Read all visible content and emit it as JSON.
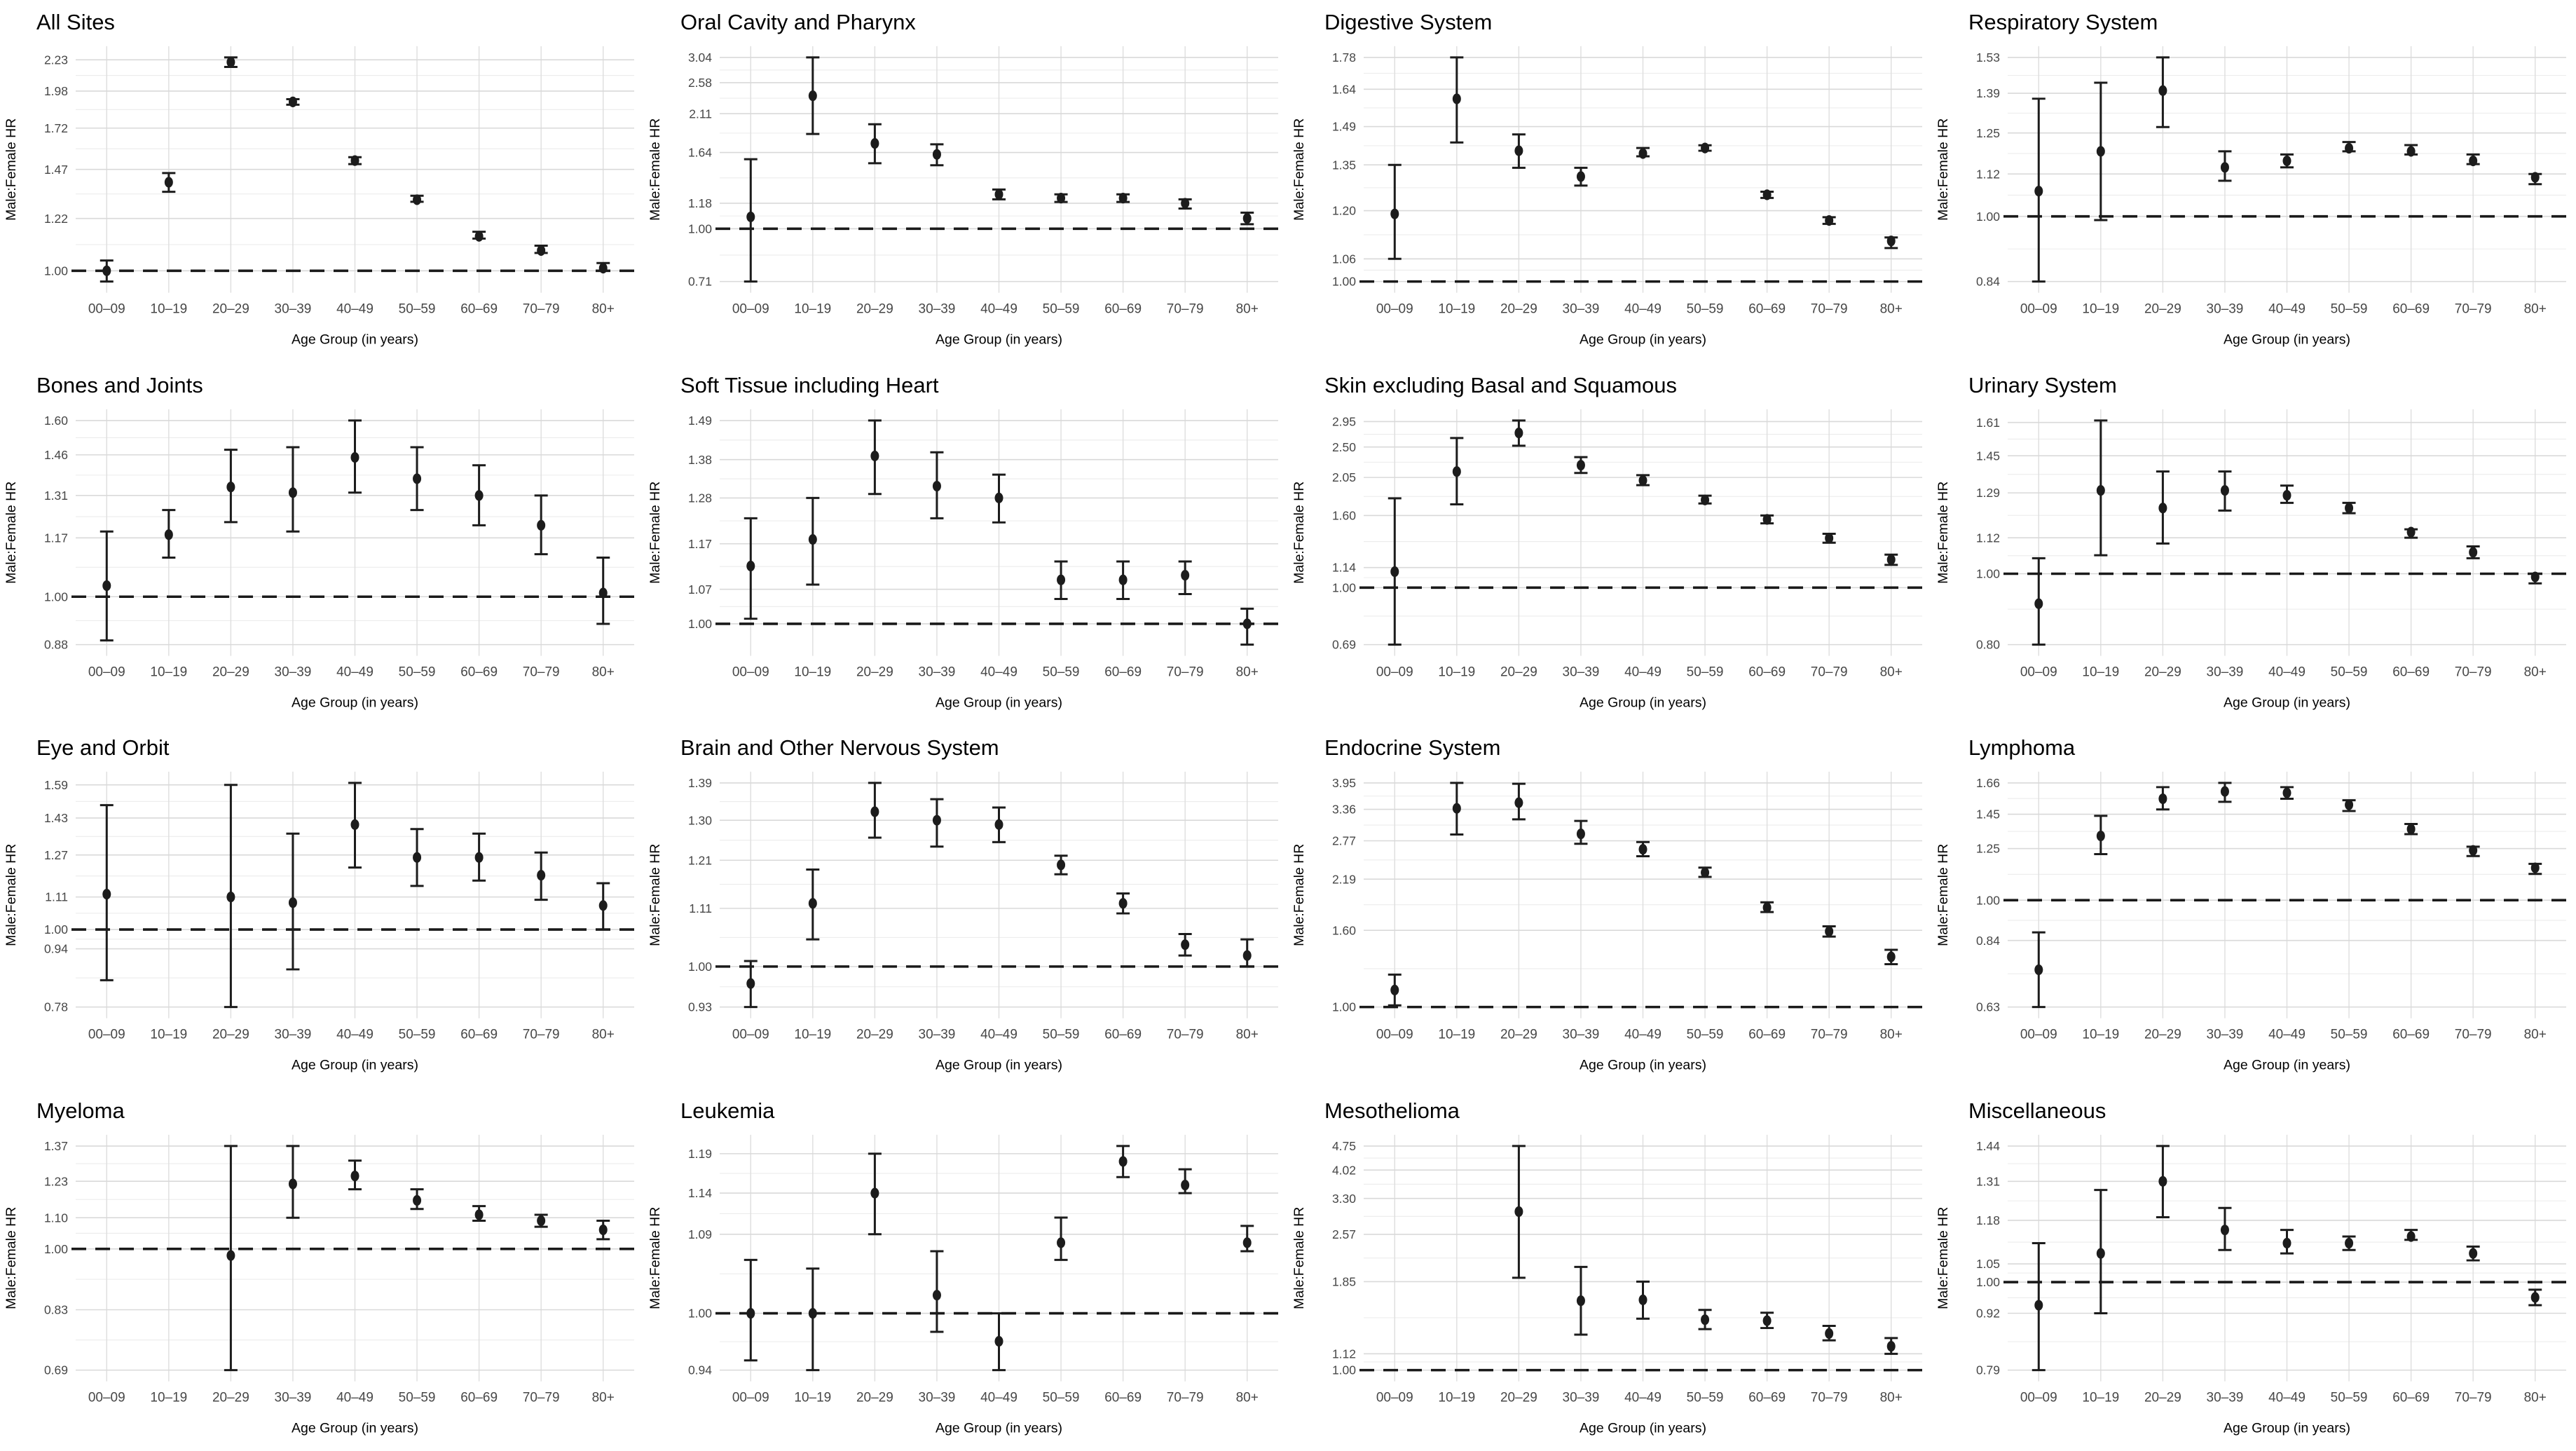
{
  "chart_data": {
    "type": "scatter",
    "subtype": "point-estimates-with-95ci-error-bars",
    "grid": {
      "rows": 4,
      "cols": 4
    },
    "scale": "log",
    "grid_on": true,
    "x_categories": [
      "00–09",
      "10–19",
      "20–29",
      "30–39",
      "40–49",
      "50–59",
      "60–69",
      "70–79",
      "80+"
    ],
    "xlabel": "Age Group (in years)",
    "ylabel": "Male:Female HR",
    "reference_line": 1.0,
    "colors": {
      "point": "#1c1c1c",
      "error_bar": "#1c1c1c",
      "reference_line": "#1a1a1a",
      "grid_major": "#d9d9d9",
      "grid_minor": "#ececec",
      "grid_vertical": "#dedede",
      "tick_text": "#474747",
      "title_text": "#000000",
      "background": "#ffffff"
    },
    "panels": [
      {
        "title": "All Sites",
        "y_ticks": [
          1.0,
          1.22,
          1.47,
          1.72,
          1.98,
          2.23
        ],
        "values": [
          {
            "hr": 1.0,
            "lo": 0.96,
            "hi": 1.04
          },
          {
            "hr": 1.4,
            "lo": 1.35,
            "hi": 1.45
          },
          {
            "hr": 2.21,
            "lo": 2.17,
            "hi": 2.25
          },
          {
            "hr": 1.9,
            "lo": 1.88,
            "hi": 1.92
          },
          {
            "hr": 1.52,
            "lo": 1.5,
            "hi": 1.54
          },
          {
            "hr": 1.31,
            "lo": 1.3,
            "hi": 1.33
          },
          {
            "hr": 1.14,
            "lo": 1.13,
            "hi": 1.16
          },
          {
            "hr": 1.08,
            "lo": 1.07,
            "hi": 1.1
          },
          {
            "hr": 1.01,
            "lo": 1.0,
            "hi": 1.03
          }
        ]
      },
      {
        "title": "Oral Cavity and Pharynx",
        "y_ticks": [
          0.71,
          1.0,
          1.18,
          1.64,
          2.11,
          2.58,
          3.04
        ],
        "values": [
          {
            "hr": 1.08,
            "lo": 0.71,
            "hi": 1.57
          },
          {
            "hr": 2.37,
            "lo": 1.85,
            "hi": 3.04
          },
          {
            "hr": 1.74,
            "lo": 1.53,
            "hi": 1.97
          },
          {
            "hr": 1.62,
            "lo": 1.51,
            "hi": 1.73
          },
          {
            "hr": 1.25,
            "lo": 1.21,
            "hi": 1.29
          },
          {
            "hr": 1.22,
            "lo": 1.19,
            "hi": 1.25
          },
          {
            "hr": 1.22,
            "lo": 1.19,
            "hi": 1.25
          },
          {
            "hr": 1.18,
            "lo": 1.14,
            "hi": 1.21
          },
          {
            "hr": 1.07,
            "lo": 1.03,
            "hi": 1.11
          }
        ]
      },
      {
        "title": "Digestive System",
        "y_ticks": [
          1.0,
          1.06,
          1.2,
          1.35,
          1.49,
          1.64,
          1.78
        ],
        "values": [
          {
            "hr": 1.19,
            "lo": 1.06,
            "hi": 1.35
          },
          {
            "hr": 1.6,
            "lo": 1.43,
            "hi": 1.78
          },
          {
            "hr": 1.4,
            "lo": 1.34,
            "hi": 1.46
          },
          {
            "hr": 1.31,
            "lo": 1.28,
            "hi": 1.34
          },
          {
            "hr": 1.39,
            "lo": 1.38,
            "hi": 1.41
          },
          {
            "hr": 1.41,
            "lo": 1.4,
            "hi": 1.42
          },
          {
            "hr": 1.25,
            "lo": 1.24,
            "hi": 1.26
          },
          {
            "hr": 1.17,
            "lo": 1.16,
            "hi": 1.18
          },
          {
            "hr": 1.11,
            "lo": 1.09,
            "hi": 1.12
          }
        ]
      },
      {
        "title": "Respiratory System",
        "y_ticks": [
          0.84,
          1.0,
          1.12,
          1.25,
          1.39,
          1.53
        ],
        "values": [
          {
            "hr": 1.07,
            "lo": 0.84,
            "hi": 1.37
          },
          {
            "hr": 1.19,
            "lo": 0.99,
            "hi": 1.43
          },
          {
            "hr": 1.4,
            "lo": 1.27,
            "hi": 1.53
          },
          {
            "hr": 1.14,
            "lo": 1.1,
            "hi": 1.19
          },
          {
            "hr": 1.16,
            "lo": 1.14,
            "hi": 1.18
          },
          {
            "hr": 1.2,
            "lo": 1.19,
            "hi": 1.22
          },
          {
            "hr": 1.19,
            "lo": 1.18,
            "hi": 1.21
          },
          {
            "hr": 1.16,
            "lo": 1.15,
            "hi": 1.18
          },
          {
            "hr": 1.11,
            "lo": 1.09,
            "hi": 1.12
          }
        ]
      },
      {
        "title": "Bones and Joints",
        "y_ticks": [
          0.88,
          1.0,
          1.17,
          1.31,
          1.46,
          1.6
        ],
        "values": [
          {
            "hr": 1.03,
            "lo": 0.89,
            "hi": 1.19
          },
          {
            "hr": 1.18,
            "lo": 1.11,
            "hi": 1.26
          },
          {
            "hr": 1.34,
            "lo": 1.22,
            "hi": 1.48
          },
          {
            "hr": 1.32,
            "lo": 1.19,
            "hi": 1.49
          },
          {
            "hr": 1.45,
            "lo": 1.32,
            "hi": 1.6
          },
          {
            "hr": 1.37,
            "lo": 1.26,
            "hi": 1.49
          },
          {
            "hr": 1.31,
            "lo": 1.21,
            "hi": 1.42
          },
          {
            "hr": 1.21,
            "lo": 1.12,
            "hi": 1.31
          },
          {
            "hr": 1.01,
            "lo": 0.93,
            "hi": 1.11
          }
        ]
      },
      {
        "title": "Soft Tissue including Heart",
        "y_ticks": [
          1.0,
          1.07,
          1.17,
          1.28,
          1.38,
          1.49
        ],
        "values": [
          {
            "hr": 1.12,
            "lo": 1.01,
            "hi": 1.23
          },
          {
            "hr": 1.18,
            "lo": 1.08,
            "hi": 1.28
          },
          {
            "hr": 1.39,
            "lo": 1.29,
            "hi": 1.49
          },
          {
            "hr": 1.31,
            "lo": 1.23,
            "hi": 1.4
          },
          {
            "hr": 1.28,
            "lo": 1.22,
            "hi": 1.34
          },
          {
            "hr": 1.09,
            "lo": 1.05,
            "hi": 1.13
          },
          {
            "hr": 1.09,
            "lo": 1.05,
            "hi": 1.13
          },
          {
            "hr": 1.1,
            "lo": 1.06,
            "hi": 1.13
          },
          {
            "hr": 1.0,
            "lo": 0.96,
            "hi": 1.03
          }
        ]
      },
      {
        "title": "Skin excluding Basal and Squamous",
        "y_ticks": [
          0.69,
          1.0,
          1.14,
          1.6,
          2.05,
          2.5,
          2.95
        ],
        "values": [
          {
            "hr": 1.11,
            "lo": 0.69,
            "hi": 1.79
          },
          {
            "hr": 2.13,
            "lo": 1.72,
            "hi": 2.65
          },
          {
            "hr": 2.74,
            "lo": 2.52,
            "hi": 2.97
          },
          {
            "hr": 2.22,
            "lo": 2.11,
            "hi": 2.34
          },
          {
            "hr": 2.01,
            "lo": 1.95,
            "hi": 2.08
          },
          {
            "hr": 1.77,
            "lo": 1.73,
            "hi": 1.82
          },
          {
            "hr": 1.56,
            "lo": 1.52,
            "hi": 1.6
          },
          {
            "hr": 1.38,
            "lo": 1.34,
            "hi": 1.42
          },
          {
            "hr": 1.2,
            "lo": 1.16,
            "hi": 1.24
          }
        ]
      },
      {
        "title": "Urinary System",
        "y_ticks": [
          0.8,
          1.0,
          1.12,
          1.29,
          1.45,
          1.61
        ],
        "values": [
          {
            "hr": 0.91,
            "lo": 0.8,
            "hi": 1.05
          },
          {
            "hr": 1.3,
            "lo": 1.06,
            "hi": 1.62
          },
          {
            "hr": 1.23,
            "lo": 1.1,
            "hi": 1.38
          },
          {
            "hr": 1.3,
            "lo": 1.22,
            "hi": 1.38
          },
          {
            "hr": 1.28,
            "lo": 1.25,
            "hi": 1.32
          },
          {
            "hr": 1.23,
            "lo": 1.21,
            "hi": 1.25
          },
          {
            "hr": 1.14,
            "lo": 1.12,
            "hi": 1.15
          },
          {
            "hr": 1.07,
            "lo": 1.05,
            "hi": 1.09
          },
          {
            "hr": 0.99,
            "lo": 0.97,
            "hi": 1.0
          }
        ]
      },
      {
        "title": "Eye and Orbit",
        "y_ticks": [
          0.78,
          0.94,
          1.0,
          1.11,
          1.27,
          1.43,
          1.59
        ],
        "values": [
          {
            "hr": 1.12,
            "lo": 0.85,
            "hi": 1.49
          },
          null,
          {
            "hr": 1.11,
            "lo": 0.78,
            "hi": 1.59
          },
          {
            "hr": 1.09,
            "lo": 0.88,
            "hi": 1.36
          },
          {
            "hr": 1.4,
            "lo": 1.22,
            "hi": 1.6
          },
          {
            "hr": 1.26,
            "lo": 1.15,
            "hi": 1.38
          },
          {
            "hr": 1.26,
            "lo": 1.17,
            "hi": 1.36
          },
          {
            "hr": 1.19,
            "lo": 1.1,
            "hi": 1.28
          },
          {
            "hr": 1.08,
            "lo": 1.0,
            "hi": 1.16
          }
        ]
      },
      {
        "title": "Brain and Other Nervous System",
        "y_ticks": [
          0.93,
          1.0,
          1.11,
          1.21,
          1.3,
          1.39
        ],
        "values": [
          {
            "hr": 0.97,
            "lo": 0.93,
            "hi": 1.01
          },
          {
            "hr": 1.12,
            "lo": 1.05,
            "hi": 1.19
          },
          {
            "hr": 1.32,
            "lo": 1.26,
            "hi": 1.39
          },
          {
            "hr": 1.3,
            "lo": 1.24,
            "hi": 1.35
          },
          {
            "hr": 1.29,
            "lo": 1.25,
            "hi": 1.33
          },
          {
            "hr": 1.2,
            "lo": 1.18,
            "hi": 1.22
          },
          {
            "hr": 1.12,
            "lo": 1.1,
            "hi": 1.14
          },
          {
            "hr": 1.04,
            "lo": 1.02,
            "hi": 1.06
          },
          {
            "hr": 1.02,
            "lo": 1.0,
            "hi": 1.05
          }
        ]
      },
      {
        "title": "Endocrine System",
        "y_ticks": [
          1.0,
          1.6,
          2.19,
          2.77,
          3.36,
          3.95
        ],
        "values": [
          {
            "hr": 1.11,
            "lo": 1.01,
            "hi": 1.22
          },
          {
            "hr": 3.38,
            "lo": 2.88,
            "hi": 3.95
          },
          {
            "hr": 3.5,
            "lo": 3.16,
            "hi": 3.93
          },
          {
            "hr": 2.89,
            "lo": 2.72,
            "hi": 3.13
          },
          {
            "hr": 2.63,
            "lo": 2.52,
            "hi": 2.75
          },
          {
            "hr": 2.28,
            "lo": 2.22,
            "hi": 2.35
          },
          {
            "hr": 1.84,
            "lo": 1.79,
            "hi": 1.9
          },
          {
            "hr": 1.59,
            "lo": 1.54,
            "hi": 1.64
          },
          {
            "hr": 1.36,
            "lo": 1.3,
            "hi": 1.42
          }
        ]
      },
      {
        "title": "Lymphoma",
        "y_ticks": [
          0.63,
          0.84,
          1.0,
          1.25,
          1.45,
          1.66
        ],
        "values": [
          {
            "hr": 0.74,
            "lo": 0.63,
            "hi": 0.87
          },
          {
            "hr": 1.32,
            "lo": 1.22,
            "hi": 1.44
          },
          {
            "hr": 1.55,
            "lo": 1.48,
            "hi": 1.63
          },
          {
            "hr": 1.6,
            "lo": 1.53,
            "hi": 1.66
          },
          {
            "hr": 1.59,
            "lo": 1.55,
            "hi": 1.63
          },
          {
            "hr": 1.51,
            "lo": 1.47,
            "hi": 1.54
          },
          {
            "hr": 1.36,
            "lo": 1.33,
            "hi": 1.39
          },
          {
            "hr": 1.24,
            "lo": 1.21,
            "hi": 1.26
          },
          {
            "hr": 1.15,
            "lo": 1.12,
            "hi": 1.17
          }
        ]
      },
      {
        "title": "Myeloma",
        "y_ticks": [
          0.69,
          0.83,
          1.0,
          1.1,
          1.23,
          1.37
        ],
        "values": [
          null,
          null,
          {
            "hr": 0.98,
            "lo": 0.69,
            "hi": 1.37
          },
          {
            "hr": 1.22,
            "lo": 1.1,
            "hi": 1.37
          },
          {
            "hr": 1.25,
            "lo": 1.2,
            "hi": 1.31
          },
          {
            "hr": 1.16,
            "lo": 1.13,
            "hi": 1.2
          },
          {
            "hr": 1.11,
            "lo": 1.09,
            "hi": 1.14
          },
          {
            "hr": 1.09,
            "lo": 1.07,
            "hi": 1.11
          },
          {
            "hr": 1.06,
            "lo": 1.03,
            "hi": 1.09
          }
        ]
      },
      {
        "title": "Leukemia",
        "y_ticks": [
          0.94,
          1.0,
          1.09,
          1.14,
          1.19
        ],
        "values": [
          {
            "hr": 1.0,
            "lo": 0.95,
            "hi": 1.06
          },
          {
            "hr": 1.0,
            "lo": 0.94,
            "hi": 1.05
          },
          {
            "hr": 1.14,
            "lo": 1.09,
            "hi": 1.19
          },
          {
            "hr": 1.02,
            "lo": 0.98,
            "hi": 1.07
          },
          {
            "hr": 0.97,
            "lo": 0.94,
            "hi": 1.0
          },
          {
            "hr": 1.08,
            "lo": 1.06,
            "hi": 1.11
          },
          {
            "hr": 1.18,
            "lo": 1.16,
            "hi": 1.2
          },
          {
            "hr": 1.15,
            "lo": 1.14,
            "hi": 1.17
          },
          {
            "hr": 1.08,
            "lo": 1.07,
            "hi": 1.1
          }
        ]
      },
      {
        "title": "Mesothelioma",
        "y_ticks": [
          1.0,
          1.12,
          1.85,
          2.57,
          3.3,
          4.02,
          4.75
        ],
        "values": [
          null,
          null,
          {
            "hr": 3.01,
            "lo": 1.9,
            "hi": 4.75
          },
          {
            "hr": 1.62,
            "lo": 1.28,
            "hi": 2.05
          },
          {
            "hr": 1.63,
            "lo": 1.43,
            "hi": 1.85
          },
          {
            "hr": 1.42,
            "lo": 1.33,
            "hi": 1.52
          },
          {
            "hr": 1.41,
            "lo": 1.34,
            "hi": 1.49
          },
          {
            "hr": 1.29,
            "lo": 1.23,
            "hi": 1.36
          },
          {
            "hr": 1.18,
            "lo": 1.12,
            "hi": 1.25
          }
        ]
      },
      {
        "title": "Miscellaneous",
        "y_ticks": [
          0.79,
          0.92,
          1.0,
          1.05,
          1.18,
          1.31,
          1.44
        ],
        "values": [
          {
            "hr": 0.94,
            "lo": 0.79,
            "hi": 1.11
          },
          {
            "hr": 1.08,
            "lo": 0.92,
            "hi": 1.28
          },
          {
            "hr": 1.31,
            "lo": 1.19,
            "hi": 1.44
          },
          {
            "hr": 1.15,
            "lo": 1.09,
            "hi": 1.22
          },
          {
            "hr": 1.11,
            "lo": 1.08,
            "hi": 1.15
          },
          {
            "hr": 1.11,
            "lo": 1.09,
            "hi": 1.13
          },
          {
            "hr": 1.13,
            "lo": 1.12,
            "hi": 1.15
          },
          {
            "hr": 1.08,
            "lo": 1.06,
            "hi": 1.1
          },
          {
            "hr": 0.96,
            "lo": 0.94,
            "hi": 0.98
          }
        ]
      }
    ]
  }
}
